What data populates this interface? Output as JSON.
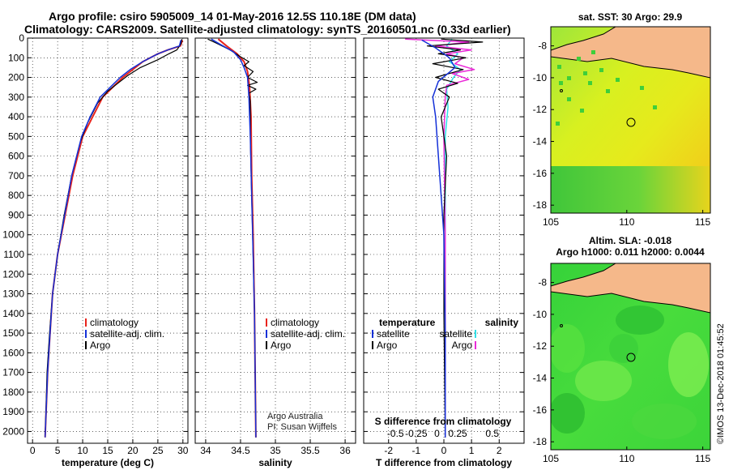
{
  "title_line1": "Argo profile: csiro 5905009_14 01-May-2016 12.5S 110.18E (DM data)",
  "title_line2": "Climatology: CARS2009. Satellite-adjusted climatology: synTS_20160501.nc (0.33d earlier)",
  "map1_title": "sat. SST: 30 Argo: 29.9",
  "map2_title_line1": "Altim. SLA: -0.018",
  "map2_title_line2": "Argo h1000: 0.011 h2000: 0.0044",
  "watermark": "©IMOS 13-Dec-2018 01:45:52",
  "credit_line1": "Argo Australia",
  "credit_line2": "PI: Susan Wijffels",
  "colors": {
    "climatology": "#e8231c",
    "satellite": "#1430d8",
    "argo": "#000000",
    "sal_satellite": "#2ee0e8",
    "sal_argo": "#ea2bd8",
    "land": "#f5b88a"
  },
  "chart_data": [
    {
      "type": "line",
      "name": "temperature_profile",
      "xlabel": "temperature (deg C)",
      "ylabel": "",
      "xlim": [
        -1,
        31
      ],
      "ylim": [
        2060,
        0
      ],
      "xticks": [
        0,
        5,
        10,
        15,
        20,
        25,
        30
      ],
      "xtick_labels": [
        "0",
        "5",
        "10",
        "15",
        "20",
        "25",
        "30"
      ],
      "yticks": [
        0,
        100,
        200,
        300,
        400,
        500,
        600,
        700,
        800,
        900,
        1000,
        1100,
        1200,
        1300,
        1400,
        1500,
        1600,
        1700,
        1800,
        1900,
        2000
      ],
      "ytick_labels": [
        "0",
        "100",
        "200",
        "300",
        "400",
        "500",
        "600",
        "700",
        "800",
        "900",
        "1000",
        "1100",
        "1200",
        "1300",
        "1400",
        "1500",
        "1600",
        "1700",
        "1800",
        "1900",
        "2000"
      ],
      "grid": true,
      "legend": [
        "climatology",
        "satellite-adj. clim.",
        "Argo"
      ],
      "series": [
        {
          "name": "climatology",
          "x": [
            29.9,
            29.5,
            27,
            25,
            22,
            20,
            18,
            16,
            14,
            12,
            10,
            8,
            6.5,
            5,
            4,
            3.5,
            3,
            2.5
          ],
          "y": [
            10,
            40,
            60,
            80,
            120,
            160,
            200,
            250,
            300,
            400,
            500,
            700,
            900,
            1100,
            1300,
            1500,
            1700,
            2030
          ]
        },
        {
          "name": "satellite-adj. clim.",
          "x": [
            29.6,
            29.3,
            27,
            25,
            22,
            19.5,
            17.5,
            15.5,
            13.5,
            11.5,
            9.8,
            7.8,
            6.4,
            5,
            4,
            3.5,
            3,
            2.5
          ],
          "y": [
            10,
            40,
            60,
            80,
            120,
            160,
            200,
            250,
            300,
            400,
            500,
            700,
            900,
            1100,
            1300,
            1500,
            1700,
            2030
          ]
        },
        {
          "name": "Argo",
          "x": [
            29.8,
            29.6,
            28.8,
            27.2,
            25,
            21.5,
            19,
            17,
            15,
            13,
            11,
            9.5,
            7.8,
            6.3,
            5,
            4,
            3.4,
            2.9,
            2.5
          ],
          "y": [
            5,
            30,
            60,
            80,
            110,
            150,
            190,
            230,
            270,
            330,
            430,
            530,
            700,
            900,
            1100,
            1300,
            1500,
            1700,
            2030
          ]
        }
      ]
    },
    {
      "type": "line",
      "name": "salinity_profile",
      "xlabel": "salinity",
      "xlim": [
        33.85,
        36.15
      ],
      "ylim": [
        2060,
        0
      ],
      "xticks": [
        34,
        34.5,
        35,
        35.5,
        36
      ],
      "xtick_labels": [
        "34",
        "34.5",
        "35",
        "35.5",
        "36"
      ],
      "grid": true,
      "legend": [
        "climatology",
        "satellite-adj. clim.",
        "Argo"
      ],
      "series": [
        {
          "name": "climatology",
          "x": [
            34.18,
            34.3,
            34.45,
            34.55,
            34.6,
            34.63,
            34.65,
            34.66,
            34.68,
            34.7,
            34.71,
            34.72
          ],
          "y": [
            5,
            40,
            80,
            120,
            170,
            250,
            400,
            700,
            1000,
            1400,
            1700,
            2030
          ]
        },
        {
          "name": "satellite-adj. clim.",
          "x": [
            34.08,
            34.2,
            34.4,
            34.5,
            34.55,
            34.6,
            34.62,
            34.64,
            34.66,
            34.68,
            34.7,
            34.71,
            34.72
          ],
          "y": [
            5,
            30,
            70,
            110,
            150,
            200,
            300,
            500,
            800,
            1100,
            1400,
            1700,
            2030
          ]
        },
        {
          "name": "Argo",
          "x": [
            34.03,
            34.15,
            34.35,
            34.5,
            34.62,
            34.55,
            34.68,
            34.6,
            34.74,
            34.6,
            34.72,
            34.62,
            34.64,
            34.64,
            34.66,
            34.68,
            34.7,
            34.71,
            34.72
          ],
          "y": [
            5,
            25,
            60,
            95,
            120,
            140,
            170,
            200,
            225,
            240,
            260,
            280,
            320,
            500,
            800,
            1100,
            1400,
            1700,
            2030
          ]
        }
      ]
    },
    {
      "type": "line",
      "name": "difference_from_climatology",
      "xlabel": "T difference from climatology",
      "xlabel2": "S difference from climatology",
      "xlim": [
        -2.9,
        2.9
      ],
      "ylim": [
        2060,
        0
      ],
      "xticks": [
        -2,
        -1,
        0,
        1,
        2
      ],
      "xtick_labels": [
        "-2",
        "-1",
        "0",
        "1",
        "2"
      ],
      "xticks2": [
        -1.75,
        -1,
        -0.25,
        0.5,
        1.75
      ],
      "xtick2_labels": [
        "-0.5",
        "-0.25",
        "0",
        "0.25",
        "0.5"
      ],
      "legend_left_title": "temperature",
      "legend_right_title": "salinity",
      "legend": [
        "satellite",
        "Argo",
        "satellite",
        "Argo"
      ],
      "series": [
        {
          "name": "satellite",
          "x": [
            -0.8,
            -0.3,
            0.2,
            0.4,
            -0.2,
            -0.4,
            -0.3,
            -0.2,
            -0.1,
            0,
            0.05,
            0.05
          ],
          "y": [
            10,
            50,
            100,
            150,
            220,
            300,
            400,
            600,
            800,
            1000,
            1500,
            2030
          ]
        },
        {
          "name": "Argo",
          "x": [
            -0.1,
            1.4,
            -0.6,
            0.6,
            -0.2,
            0.8,
            -0.4,
            0.7,
            -0.3,
            0.5,
            -0.2,
            0.2,
            -0.1,
            0.1,
            0,
            0,
            0.05
          ],
          "y": [
            5,
            20,
            40,
            60,
            80,
            100,
            130,
            160,
            200,
            230,
            260,
            300,
            400,
            600,
            900,
            1400,
            2030
          ]
        },
        {
          "name": "satellite",
          "x": [
            0.3,
            0.1,
            0.5,
            0.2,
            0.6,
            0.35,
            0.1,
            0.15,
            0.05,
            0.05,
            0.05,
            0.05
          ],
          "y": [
            5,
            40,
            80,
            120,
            160,
            200,
            260,
            350,
            500,
            800,
            1400,
            2030
          ]
        },
        {
          "name": "Argo",
          "x": [
            -1.4,
            0.9,
            -0.3,
            1.0,
            0.1,
            0.7,
            0.4,
            1.1,
            0.3,
            0.9,
            0.1,
            0.05,
            0,
            0.05,
            0.05
          ],
          "y": [
            5,
            20,
            40,
            60,
            80,
            100,
            130,
            160,
            180,
            210,
            240,
            300,
            500,
            1000,
            2030
          ]
        }
      ]
    },
    {
      "type": "heatmap",
      "name": "sst_map",
      "title": "sat. SST: 30 Argo: 29.9",
      "xlim": [
        105,
        115.5
      ],
      "ylim": [
        -18.5,
        -6.8
      ],
      "xticks": [
        105,
        110,
        115
      ],
      "yticks": [
        -8,
        -10,
        -12,
        -14,
        -16,
        -18
      ],
      "ytick_labels": [
        "-8",
        "-10",
        "-12",
        "-14",
        "-16",
        "-18"
      ],
      "argo_location": {
        "lon": 110.18,
        "lat": -12.5
      }
    },
    {
      "type": "heatmap",
      "name": "sla_map",
      "title": "Altim. SLA: -0.018",
      "subtitle": "Argo h1000: 0.011 h2000: 0.0044",
      "xlim": [
        105,
        115.5
      ],
      "ylim": [
        -18.5,
        -6.8
      ],
      "xticks": [
        105,
        110,
        115
      ],
      "yticks": [
        -8,
        -10,
        -12,
        -14,
        -16,
        -18
      ],
      "ytick_labels": [
        "-8",
        "-10",
        "-12",
        "-14",
        "-16",
        "-18"
      ],
      "argo_location": {
        "lon": 110.18,
        "lat": -12.5
      }
    }
  ]
}
